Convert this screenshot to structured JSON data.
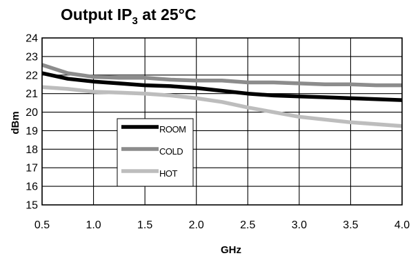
{
  "chart_data": {
    "type": "line",
    "title": {
      "prefix": "Output IP",
      "subscript": "3",
      "suffix": " at 25°C"
    },
    "xlabel": "GHz",
    "ylabel": "dBm",
    "xlim": [
      0.5,
      4.0
    ],
    "ylim": [
      15,
      24
    ],
    "xticks": [
      0.5,
      1.0,
      1.5,
      2.0,
      2.5,
      3.0,
      3.5,
      4.0
    ],
    "xtick_labels": [
      "0.5",
      "1.0",
      "1.5",
      "2.0",
      "2.5",
      "3.0",
      "3.5",
      "4.0"
    ],
    "yticks": [
      15,
      16,
      17,
      18,
      19,
      20,
      21,
      22,
      23,
      24
    ],
    "ytick_labels": [
      "15",
      "16",
      "17",
      "18",
      "19",
      "20",
      "21",
      "22",
      "23",
      "24"
    ],
    "grid": true,
    "legend_position": "lower-left",
    "series": [
      {
        "name": "ROOM",
        "color": "#000000",
        "x": [
          0.5,
          0.75,
          1.0,
          1.25,
          1.5,
          1.75,
          2.0,
          2.25,
          2.5,
          2.75,
          3.0,
          3.25,
          3.5,
          3.75,
          4.0
        ],
        "y": [
          22.1,
          21.8,
          21.65,
          21.55,
          21.45,
          21.4,
          21.3,
          21.15,
          21.0,
          20.9,
          20.85,
          20.8,
          20.75,
          20.7,
          20.65
        ]
      },
      {
        "name": "COLD",
        "color": "#8c8c8c",
        "x": [
          0.5,
          0.75,
          1.0,
          1.25,
          1.5,
          1.75,
          2.0,
          2.25,
          2.5,
          2.75,
          3.0,
          3.25,
          3.5,
          3.75,
          4.0
        ],
        "y": [
          22.55,
          22.1,
          21.9,
          21.85,
          21.85,
          21.75,
          21.7,
          21.7,
          21.6,
          21.6,
          21.55,
          21.5,
          21.5,
          21.45,
          21.45
        ]
      },
      {
        "name": "HOT",
        "color": "#bdbdbd",
        "x": [
          0.5,
          0.75,
          1.0,
          1.25,
          1.5,
          1.75,
          2.0,
          2.25,
          2.5,
          2.75,
          3.0,
          3.25,
          3.5,
          3.75,
          4.0
        ],
        "y": [
          21.35,
          21.25,
          21.1,
          21.05,
          21.0,
          20.9,
          20.75,
          20.55,
          20.25,
          20.0,
          19.75,
          19.6,
          19.45,
          19.35,
          19.25
        ]
      }
    ]
  }
}
